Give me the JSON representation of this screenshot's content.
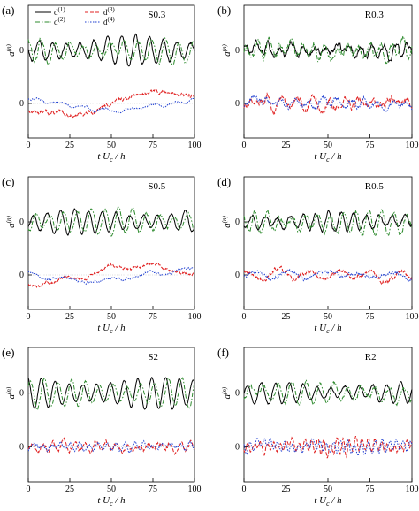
{
  "legend": {
    "entries": [
      {
        "label": "d(1)",
        "color": "#000000",
        "dash": "solid"
      },
      {
        "label": "d(2)",
        "color": "#2e8b2e",
        "dash": "dashdot"
      },
      {
        "label": "d(3)",
        "color": "#e02020",
        "dash": "dashed"
      },
      {
        "label": "d(4)",
        "color": "#1f3fd0",
        "dash": "dotted"
      }
    ]
  },
  "chart_data": [
    {
      "type": "line",
      "panel": "(a)",
      "tag": "S0.3",
      "xlabel": "t U_c / h",
      "ylabel": "a(n)",
      "xlim": [
        0,
        100
      ],
      "x_ticks": [
        "0",
        "25",
        "50",
        "75",
        "100"
      ],
      "y_ticks": [
        "0",
        "0"
      ],
      "series": [
        {
          "name": "d(1)",
          "offset": 1,
          "style": {
            "amp": 0.55,
            "freq": 1.0,
            "trend": 0.0,
            "noise": 0.08
          }
        },
        {
          "name": "d(2)",
          "offset": 1,
          "style": {
            "amp": 0.45,
            "freq": 1.0,
            "trend": 0.0,
            "noise": 0.12
          }
        },
        {
          "name": "d(3)",
          "offset": 0,
          "style": {
            "amp": 0.1,
            "freq": 0.15,
            "trend": 0.45,
            "noise": 0.1
          }
        },
        {
          "name": "d(4)",
          "offset": 0,
          "style": {
            "amp": 0.08,
            "freq": 0.6,
            "trend": -0.25,
            "noise": 0.05
          }
        }
      ]
    },
    {
      "type": "line",
      "panel": "(b)",
      "tag": "R0.3",
      "xlabel": "t U_c / h",
      "ylabel": "a(n)",
      "xlim": [
        0,
        100
      ],
      "x_ticks": [
        "0",
        "25",
        "50",
        "75",
        "100"
      ],
      "y_ticks": [
        "0",
        "0"
      ],
      "series": [
        {
          "name": "d(1)",
          "offset": 1,
          "style": {
            "amp": 0.25,
            "freq": 1.2,
            "trend": 0.0,
            "noise": 0.15
          }
        },
        {
          "name": "d(2)",
          "offset": 1,
          "style": {
            "amp": 0.3,
            "freq": 1.25,
            "trend": 0.0,
            "noise": 0.2
          }
        },
        {
          "name": "d(3)",
          "offset": 0,
          "style": {
            "amp": 0.25,
            "freq": 0.9,
            "trend": 0.0,
            "noise": 0.2
          }
        },
        {
          "name": "d(4)",
          "offset": 0,
          "style": {
            "amp": 0.2,
            "freq": 1.0,
            "trend": 0.0,
            "noise": 0.15
          }
        }
      ]
    },
    {
      "type": "line",
      "panel": "(c)",
      "tag": "S0.5",
      "xlabel": "t U_c / h",
      "ylabel": "a(n)",
      "xlim": [
        0,
        100
      ],
      "x_ticks": [
        "0",
        "25",
        "50",
        "75",
        "100"
      ],
      "y_ticks": [
        "0",
        "0"
      ],
      "series": [
        {
          "name": "d(1)",
          "offset": 1,
          "style": {
            "amp": 0.45,
            "freq": 1.0,
            "trend": 0.0,
            "noise": 0.06
          }
        },
        {
          "name": "d(2)",
          "offset": 1,
          "style": {
            "amp": 0.5,
            "freq": 1.0,
            "trend": 0.0,
            "noise": 0.1
          }
        },
        {
          "name": "d(3)",
          "offset": 0,
          "style": {
            "amp": 0.12,
            "freq": 0.3,
            "trend": -0.35,
            "noise": 0.08
          }
        },
        {
          "name": "d(4)",
          "offset": 0,
          "style": {
            "amp": 0.1,
            "freq": 0.35,
            "trend": 0.2,
            "noise": 0.06
          }
        }
      ]
    },
    {
      "type": "line",
      "panel": "(d)",
      "tag": "R0.5",
      "xlabel": "t U_c / h",
      "ylabel": "a(n)",
      "xlim": [
        0,
        100
      ],
      "x_ticks": [
        "0",
        "25",
        "50",
        "75",
        "100"
      ],
      "y_ticks": [
        "0",
        "0"
      ],
      "series": [
        {
          "name": "d(1)",
          "offset": 1,
          "style": {
            "amp": 0.35,
            "freq": 1.1,
            "trend": 0.0,
            "noise": 0.1
          }
        },
        {
          "name": "d(2)",
          "offset": 1,
          "style": {
            "amp": 0.45,
            "freq": 1.1,
            "trend": 0.0,
            "noise": 0.15
          }
        },
        {
          "name": "d(3)",
          "offset": 0,
          "style": {
            "amp": 0.2,
            "freq": 0.45,
            "trend": 0.0,
            "noise": 0.12
          }
        },
        {
          "name": "d(4)",
          "offset": 0,
          "style": {
            "amp": 0.15,
            "freq": 0.4,
            "trend": 0.0,
            "noise": 0.1
          }
        }
      ]
    },
    {
      "type": "line",
      "panel": "(e)",
      "tag": "S2",
      "xlabel": "t U_c / h",
      "ylabel": "a(n)",
      "xlim": [
        0,
        100
      ],
      "x_ticks": [
        "0",
        "25",
        "50",
        "75",
        "100"
      ],
      "y_ticks": [
        "0",
        "0"
      ],
      "series": [
        {
          "name": "d(1)",
          "offset": 1,
          "style": {
            "amp": 0.6,
            "freq": 1.0,
            "trend": 0.0,
            "noise": 0.04
          }
        },
        {
          "name": "d(2)",
          "offset": 1,
          "style": {
            "amp": 0.55,
            "freq": 1.0,
            "trend": 0.0,
            "noise": 0.08
          }
        },
        {
          "name": "d(3)",
          "offset": 0,
          "style": {
            "amp": 0.18,
            "freq": 1.3,
            "trend": 0.0,
            "noise": 0.12
          }
        },
        {
          "name": "d(4)",
          "offset": 0,
          "style": {
            "amp": 0.15,
            "freq": 1.5,
            "trend": 0.0,
            "noise": 0.1
          }
        }
      ]
    },
    {
      "type": "line",
      "panel": "(f)",
      "tag": "R2",
      "xlabel": "t U_c / h",
      "ylabel": "a(n)",
      "xlim": [
        0,
        100
      ],
      "x_ticks": [
        "0",
        "25",
        "50",
        "75",
        "100"
      ],
      "y_ticks": [
        "0",
        "0"
      ],
      "series": [
        {
          "name": "d(1)",
          "offset": 1,
          "style": {
            "amp": 0.4,
            "freq": 1.0,
            "trend": 0.0,
            "noise": 0.06
          }
        },
        {
          "name": "d(2)",
          "offset": 1,
          "style": {
            "amp": 0.4,
            "freq": 1.0,
            "trend": 0.0,
            "noise": 0.12
          }
        },
        {
          "name": "d(3)",
          "offset": 0,
          "style": {
            "amp": 0.25,
            "freq": 2.2,
            "trend": 0.0,
            "noise": 0.15
          }
        },
        {
          "name": "d(4)",
          "offset": 0,
          "style": {
            "amp": 0.22,
            "freq": 2.0,
            "trend": 0.0,
            "noise": 0.12
          }
        }
      ]
    }
  ]
}
